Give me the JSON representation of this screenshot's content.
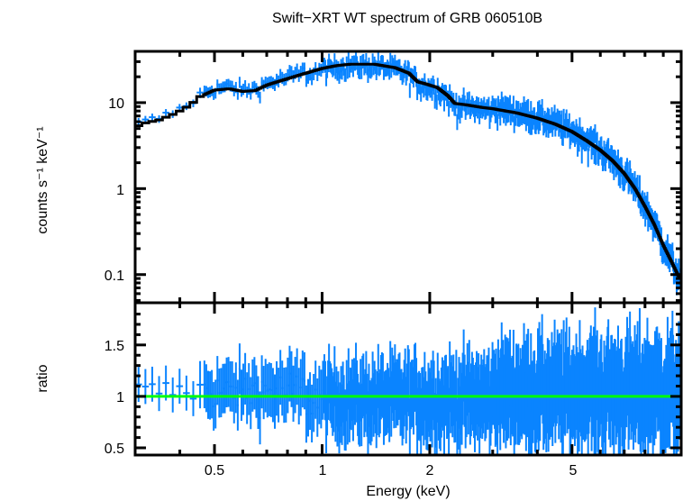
{
  "chart_data": {
    "type": "line",
    "title": "Swift−XRT WT spectrum of GRB 060510B",
    "colors": {
      "data": "#0a84ff",
      "model": "#000000",
      "unity_line": "#00ff00",
      "frame": "#000000"
    },
    "x_axis": {
      "label": "Energy (keV)",
      "scale": "log",
      "range": [
        0.3,
        10.1
      ],
      "tick_labels": [
        "0.5",
        "1",
        "2",
        "5"
      ],
      "tick_values": [
        0.5,
        1,
        2,
        5
      ],
      "minor_ticks": [
        0.4,
        0.6,
        0.7,
        0.8,
        0.9,
        3,
        4,
        6,
        7,
        8,
        9
      ]
    },
    "panels": [
      {
        "name": "spectrum",
        "ylabel": "counts s⁻¹ keV⁻¹",
        "yscale": "log",
        "ylim": [
          0.047,
          39.5
        ],
        "y_tick_labels": [
          "10",
          "1",
          "0.1"
        ],
        "y_tick_values": [
          10,
          1,
          0.1
        ],
        "model": {
          "name": "model",
          "x": [
            0.3,
            0.32,
            0.35,
            0.38,
            0.4,
            0.43,
            0.45,
            0.5,
            0.55,
            0.6,
            0.65,
            0.7,
            0.8,
            0.9,
            1.0,
            1.1,
            1.2,
            1.4,
            1.6,
            1.75,
            1.85,
            1.95,
            2.1,
            2.25,
            2.35,
            2.5,
            2.8,
            3.0,
            3.5,
            4.0,
            4.5,
            5.0,
            5.5,
            6.0,
            6.5,
            7.0,
            7.5,
            8.0,
            8.5,
            9.0,
            9.5,
            10.0
          ],
          "y": [
            5.2,
            5.8,
            6.3,
            7.2,
            8.0,
            9.5,
            11.5,
            14.0,
            14.5,
            13.5,
            13.8,
            16.0,
            19.0,
            22.0,
            25.0,
            27.0,
            28.0,
            28.0,
            25.5,
            22.0,
            17.5,
            16.5,
            15.0,
            12.0,
            9.8,
            9.5,
            8.8,
            8.5,
            7.6,
            6.6,
            5.6,
            4.6,
            3.6,
            2.8,
            2.1,
            1.5,
            1.0,
            0.62,
            0.38,
            0.22,
            0.14,
            0.09
          ]
        },
        "data": {
          "name": "data",
          "note": "noisy binned spectrum scattering around the model; generated as model × ratio"
        }
      },
      {
        "name": "ratio",
        "ylabel": "ratio",
        "yscale": "linear",
        "ylim": [
          0.43,
          1.91
        ],
        "y_tick_labels": [
          "1.5",
          "1",
          "0.5"
        ],
        "y_tick_values": [
          1.5,
          1,
          0.5
        ],
        "reference_line": 1.0,
        "ratio_scatter": {
          "low_energy_mean": 1.05,
          "mid_energy_mean": 0.97,
          "high_energy_mean": 1.05,
          "typical_error_low": 0.2,
          "typical_error_high": 0.45
        }
      }
    ]
  }
}
